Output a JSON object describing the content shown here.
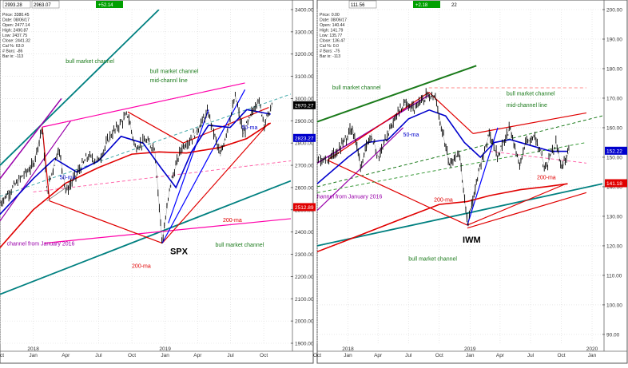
{
  "colors": {
    "price": "#000000",
    "ma50": "#0000cc",
    "ma200": "#e00000",
    "channel_bull": "#008080",
    "channel_jan": "#9900aa",
    "pink": "#ff00aa",
    "red": "#e00000",
    "green": "#1a7a1a",
    "blue_trend": "#0000ff",
    "pink_dash": "#ff66aa",
    "grid": "#d9d9d9",
    "positive_badge": "#00a000"
  },
  "chart_data": [
    {
      "type": "line",
      "symbol": "SPX",
      "title": "SPX",
      "ylim": [
        1900,
        3400
      ],
      "yticks": [
        1900,
        2000,
        2100,
        2200,
        2300,
        2400,
        2500,
        2600,
        2700,
        2800,
        2900,
        3000,
        3100,
        3200,
        3300,
        3400
      ],
      "xlim": [
        "2017-10-01",
        "2019-12-15"
      ],
      "xticks": [
        {
          "label": "Oct",
          "date": "2017-10-01"
        },
        {
          "label": "Jan",
          "date": "2018-01-01",
          "year": "2018"
        },
        {
          "label": "Apr",
          "date": "2018-04-01"
        },
        {
          "label": "Jul",
          "date": "2018-07-01"
        },
        {
          "label": "Oct",
          "date": "2018-10-01"
        },
        {
          "label": "Jan",
          "date": "2019-01-01",
          "year": "2019"
        },
        {
          "label": "Apr",
          "date": "2019-04-01"
        },
        {
          "label": "Jul",
          "date": "2019-07-01"
        },
        {
          "label": "Oct",
          "date": "2019-10-01"
        }
      ],
      "header": {
        "left_value": "2993.28",
        "right_value": "2963.07",
        "change": "+52.14"
      },
      "info": [
        "Price: 3380.45",
        "Date: 08/06/17",
        "Open: 2477.14",
        "High: 2490.87",
        "Low: 2437.75",
        "Close: 2441.32",
        "Cal %: 63.0",
        "# Bars: -86",
        "Bar ix: -113"
      ],
      "last_price": "2970.27",
      "value_tags": [
        {
          "label": "2970.27",
          "value": 2970,
          "style": "dark"
        },
        {
          "label": "2823.27",
          "value": 2823,
          "style": "blue"
        },
        {
          "label": "2512.89",
          "value": 2512,
          "style": "red"
        }
      ],
      "price_series": [
        [
          "2017-10-01",
          2530
        ],
        [
          "2017-11-01",
          2590
        ],
        [
          "2017-12-01",
          2650
        ],
        [
          "2018-01-01",
          2700
        ],
        [
          "2018-01-26",
          2872
        ],
        [
          "2018-02-08",
          2580
        ],
        [
          "2018-03-12",
          2780
        ],
        [
          "2018-04-02",
          2580
        ],
        [
          "2018-05-01",
          2660
        ],
        [
          "2018-06-01",
          2740
        ],
        [
          "2018-07-01",
          2720
        ],
        [
          "2018-08-01",
          2830
        ],
        [
          "2018-09-20",
          2930
        ],
        [
          "2018-10-10",
          2780
        ],
        [
          "2018-11-07",
          2810
        ],
        [
          "2018-12-03",
          2780
        ],
        [
          "2018-12-24",
          2350
        ],
        [
          "2019-01-15",
          2610
        ],
        [
          "2019-02-15",
          2780
        ],
        [
          "2019-03-15",
          2820
        ],
        [
          "2019-04-30",
          2940
        ],
        [
          "2019-06-03",
          2740
        ],
        [
          "2019-07-15",
          3010
        ],
        [
          "2019-08-05",
          2840
        ],
        [
          "2019-09-15",
          3000
        ],
        [
          "2019-10-03",
          2890
        ],
        [
          "2019-10-25",
          2970
        ]
      ],
      "ma50_series": [
        [
          "2017-10-01",
          2480
        ],
        [
          "2018-01-01",
          2640
        ],
        [
          "2018-03-01",
          2730
        ],
        [
          "2018-05-01",
          2670
        ],
        [
          "2018-07-01",
          2720
        ],
        [
          "2018-09-01",
          2830
        ],
        [
          "2018-11-01",
          2800
        ],
        [
          "2018-12-20",
          2690
        ],
        [
          "2019-01-31",
          2600
        ],
        [
          "2019-03-15",
          2760
        ],
        [
          "2019-05-01",
          2880
        ],
        [
          "2019-06-30",
          2870
        ],
        [
          "2019-08-15",
          2950
        ],
        [
          "2019-10-20",
          2930
        ]
      ],
      "ma200_series": [
        [
          "2017-10-01",
          2330
        ],
        [
          "2018-01-01",
          2500
        ],
        [
          "2018-04-01",
          2620
        ],
        [
          "2018-07-01",
          2690
        ],
        [
          "2018-10-01",
          2750
        ],
        [
          "2018-12-15",
          2760
        ],
        [
          "2019-03-01",
          2755
        ],
        [
          "2019-06-01",
          2780
        ],
        [
          "2019-08-15",
          2820
        ],
        [
          "2019-10-20",
          2890
        ]
      ],
      "annotations": [
        {
          "text": "bull market channel",
          "date": "2018-04-01",
          "value": 3160,
          "color": "green"
        },
        {
          "text": "bull market channel",
          "date": "2018-11-20",
          "value": 3115,
          "color": "green"
        },
        {
          "text": "mid-channl line",
          "date": "2018-11-20",
          "value": 3073,
          "color": "green"
        },
        {
          "text": "bull market channel",
          "date": "2019-05-20",
          "value": 2335,
          "color": "green"
        },
        {
          "text": "50-ma",
          "date": "2018-03-15",
          "value": 2638,
          "color": "ma50"
        },
        {
          "text": "50-ma",
          "date": "2019-08-01",
          "value": 2862,
          "color": "ma50"
        },
        {
          "text": "200-ma",
          "date": "2019-06-10",
          "value": 2445,
          "color": "red"
        },
        {
          "text": "200-ma",
          "date": "2018-10-01",
          "value": 2240,
          "color": "red"
        },
        {
          "text": "channel from January 2016",
          "date": "2017-10-20",
          "value": 2340,
          "color": "channel_jan"
        },
        {
          "text": "SPX",
          "date": "2019-01-15",
          "value": 2300,
          "color": "price",
          "big": true
        }
      ]
    },
    {
      "type": "line",
      "symbol": "IWM",
      "title": "IWM",
      "ylim": [
        87,
        200
      ],
      "yticks": [
        90,
        100,
        110,
        120,
        130,
        140,
        150,
        160,
        170,
        180,
        190,
        200
      ],
      "xlim": [
        "2017-10-01",
        "2020-02-01"
      ],
      "xticks": [
        {
          "label": "Oct",
          "date": "2017-10-01"
        },
        {
          "label": "Jan",
          "date": "2018-01-01",
          "year": "2018"
        },
        {
          "label": "Apr",
          "date": "2018-04-01"
        },
        {
          "label": "Jul",
          "date": "2018-07-01"
        },
        {
          "label": "Oct",
          "date": "2018-10-01"
        },
        {
          "label": "Jan",
          "date": "2019-01-01",
          "year": "2019"
        },
        {
          "label": "Apr",
          "date": "2019-04-01"
        },
        {
          "label": "Jul",
          "date": "2019-07-01"
        },
        {
          "label": "Oct",
          "date": "2019-10-01"
        },
        {
          "label": "Jan",
          "date": "2020-01-01",
          "year": "2020"
        }
      ],
      "header": {
        "left_value": "",
        "right_value": "111.56",
        "change": "+2.18",
        "extra": "22"
      },
      "info": [
        "Price: 0.00",
        "Date: 08/06/17",
        "Open: 140.44",
        "High: 141.79",
        "Low: 135.77",
        "Close: 136.47",
        "Cal %: 0.0",
        "# Bars: -75",
        "Bar ix: -113"
      ],
      "last_price": "152.22",
      "value_tags": [
        {
          "label": "152.22",
          "value": 152.2,
          "style": "blue"
        },
        {
          "label": "141.18",
          "value": 141.2,
          "style": "red"
        }
      ],
      "price_series": [
        [
          "2017-10-01",
          150
        ],
        [
          "2017-11-01",
          149
        ],
        [
          "2017-12-01",
          152
        ],
        [
          "2018-01-15",
          160
        ],
        [
          "2018-02-08",
          147
        ],
        [
          "2018-03-12",
          158
        ],
        [
          "2018-04-02",
          150
        ],
        [
          "2018-05-15",
          162
        ],
        [
          "2018-06-20",
          168
        ],
        [
          "2018-07-20",
          166
        ],
        [
          "2018-08-31",
          172
        ],
        [
          "2018-09-20",
          170
        ],
        [
          "2018-10-30",
          148
        ],
        [
          "2018-12-01",
          151
        ],
        [
          "2018-12-24",
          127
        ],
        [
          "2019-01-31",
          147
        ],
        [
          "2019-02-28",
          158
        ],
        [
          "2019-03-25",
          150
        ],
        [
          "2019-04-30",
          160
        ],
        [
          "2019-05-31",
          147
        ],
        [
          "2019-06-15",
          155
        ],
        [
          "2019-07-15",
          157
        ],
        [
          "2019-08-15",
          146
        ],
        [
          "2019-09-15",
          155
        ],
        [
          "2019-10-03",
          146
        ],
        [
          "2019-10-25",
          152
        ]
      ],
      "ma50_series": [
        [
          "2017-10-01",
          141
        ],
        [
          "2018-01-01",
          150
        ],
        [
          "2018-03-01",
          155
        ],
        [
          "2018-05-01",
          156
        ],
        [
          "2018-07-01",
          163
        ],
        [
          "2018-09-01",
          166
        ],
        [
          "2018-10-20",
          164
        ],
        [
          "2018-12-15",
          155
        ],
        [
          "2019-02-01",
          150
        ],
        [
          "2019-03-15",
          155
        ],
        [
          "2019-05-01",
          156
        ],
        [
          "2019-07-01",
          154
        ],
        [
          "2019-09-01",
          152
        ],
        [
          "2019-10-20",
          152
        ]
      ],
      "ma200_series": [
        [
          "2017-10-01",
          118
        ],
        [
          "2018-01-01",
          122
        ],
        [
          "2018-04-01",
          126
        ],
        [
          "2018-07-01",
          130
        ],
        [
          "2018-10-01",
          134
        ],
        [
          "2018-12-24",
          135
        ],
        [
          "2019-03-01",
          137
        ],
        [
          "2019-06-01",
          139
        ],
        [
          "2019-08-15",
          140
        ],
        [
          "2019-10-20",
          141
        ]
      ],
      "annotations": [
        {
          "text": "bull market channel",
          "date": "2017-11-15",
          "value": 173,
          "color": "green"
        },
        {
          "text": "bull market channel",
          "date": "2019-04-20",
          "value": 171,
          "color": "green"
        },
        {
          "text": "mid-channel line",
          "date": "2019-04-20",
          "value": 167,
          "color": "green"
        },
        {
          "text": "bull market channel",
          "date": "2018-07-01",
          "value": 115,
          "color": "green"
        },
        {
          "text": "50-ma",
          "date": "2018-06-15",
          "value": 157,
          "color": "ma50"
        },
        {
          "text": "200-ma",
          "date": "2018-09-15",
          "value": 135,
          "color": "red"
        },
        {
          "text": "200-ma",
          "date": "2019-07-20",
          "value": 142.5,
          "color": "red"
        },
        {
          "text": "hannel from January 2016",
          "date": "2017-10-01",
          "value": 136,
          "color": "channel_jan"
        },
        {
          "text": "IWM",
          "date": "2018-12-10",
          "value": 121,
          "color": "price",
          "big": true
        }
      ]
    }
  ]
}
